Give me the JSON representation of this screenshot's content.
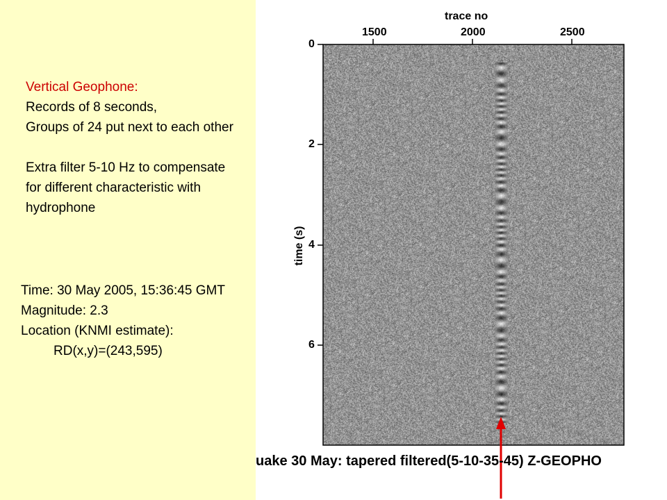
{
  "description": {
    "title": "Vertical Geophone:",
    "lines": [
      "Records of 8 seconds,",
      "Groups of 24 put next to each other",
      "",
      "Extra filter 5-10 Hz to compensate",
      "for different characteristic with",
      "hydrophone"
    ]
  },
  "event": {
    "time": "Time: 30 May 2005, 15:36:45 GMT",
    "magnitude": "Magnitude: 2.3",
    "location": "Location (KNMI estimate):",
    "coords": "RD(x,y)=(243,595)"
  },
  "plot": {
    "x_axis_title": "trace no",
    "y_axis_title": "time (s)",
    "x_ticks": [
      "1500",
      "2000",
      "2500"
    ],
    "y_ticks": [
      "0",
      "2",
      "4",
      "6"
    ],
    "caption": "uake 30 May: tapered filtered(5-10-35-45) Z-GEOPHO",
    "x_tick_values": [
      1500,
      2000,
      2500
    ],
    "y_tick_values": [
      0,
      2,
      4,
      6
    ],
    "arrow_trace": 2140,
    "colors": {
      "background_left": "#ffffc8",
      "arrow": "#e00000",
      "highlight_text": "#cc0000"
    }
  }
}
